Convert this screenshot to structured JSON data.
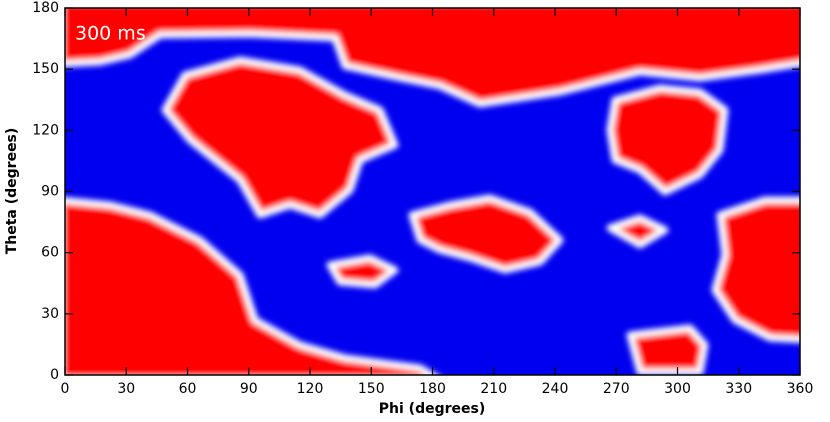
{
  "chart_data": {
    "type": "heatmap",
    "annotation": "300 ms",
    "x_label": "Phi (degrees)",
    "y_label": "Theta (degrees)",
    "xlim": [
      0,
      360
    ],
    "xticks": [
      0,
      30,
      60,
      90,
      120,
      150,
      180,
      210,
      240,
      270,
      300,
      330,
      360
    ],
    "ylim": [
      0,
      180
    ],
    "yticks": [
      0,
      30,
      60,
      90,
      120,
      150,
      180
    ],
    "colors": [
      "#0000f0",
      "#ff0000"
    ]
  }
}
